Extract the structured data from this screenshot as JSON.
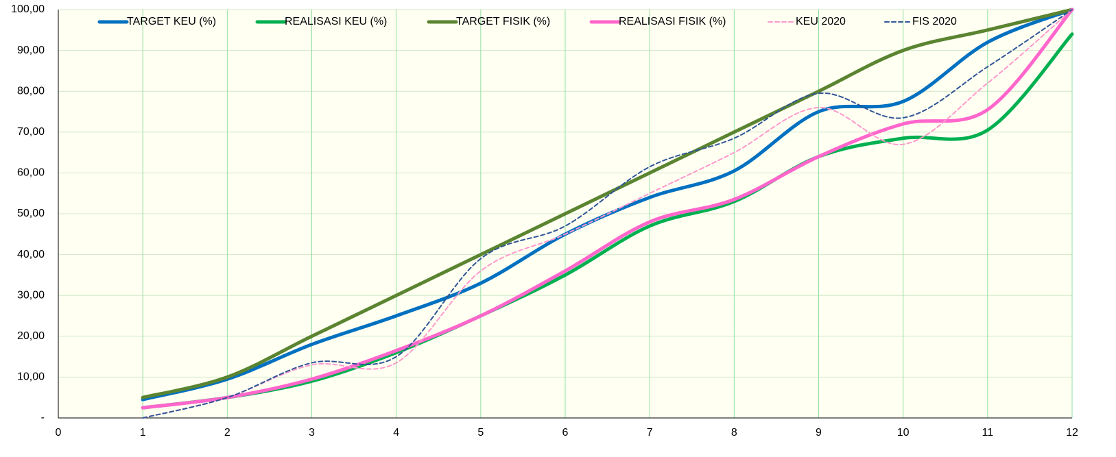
{
  "chart_data": {
    "type": "line",
    "x": [
      1,
      2,
      3,
      4,
      5,
      6,
      7,
      8,
      9,
      10,
      11,
      12
    ],
    "series": [
      {
        "name": "TARGET KEU (%)",
        "color": "#0070c0",
        "values": [
          4.5,
          9.5,
          18,
          25,
          33,
          45,
          54,
          60.5,
          75,
          77.5,
          92,
          100
        ]
      },
      {
        "name": "REALISASI KEU (%)",
        "color": "#00b050",
        "values": [
          2.5,
          5,
          9,
          16,
          25,
          35,
          47,
          53,
          64,
          68.5,
          70.5,
          94
        ]
      },
      {
        "name": "TARGET FISIK (%)",
        "color": "#5b8431",
        "values": [
          5,
          10,
          20,
          30,
          40,
          50,
          60,
          70,
          80,
          90,
          95,
          100
        ]
      },
      {
        "name": "REALISASI FISIK (%)",
        "color": "#ff66cc",
        "values": [
          2.5,
          5,
          9.5,
          16.5,
          25,
          36,
          48,
          53.5,
          64,
          72,
          75.5,
          100
        ]
      },
      {
        "name": "KEU 2020",
        "color": "#ff99cc",
        "values": [
          0,
          5,
          13,
          13.5,
          36,
          45,
          55,
          65,
          76,
          67,
          82,
          100
        ]
      },
      {
        "name": "FIS 2020",
        "color": "#2f5597",
        "values": [
          0,
          5,
          13.5,
          15,
          39,
          47,
          61.5,
          68.5,
          79.5,
          73.5,
          86,
          100
        ]
      }
    ],
    "xlim": [
      0,
      12
    ],
    "xticks": [
      0,
      1,
      2,
      3,
      4,
      5,
      6,
      7,
      8,
      9,
      10,
      11,
      12
    ],
    "ylim": [
      0,
      100
    ],
    "yticks": [
      {
        "value": 0,
        "label": "-"
      },
      {
        "value": 10,
        "label": "10,00"
      },
      {
        "value": 20,
        "label": "20,00"
      },
      {
        "value": 30,
        "label": "30,00"
      },
      {
        "value": 40,
        "label": "40,00"
      },
      {
        "value": 50,
        "label": "50,00"
      },
      {
        "value": 60,
        "label": "60,00"
      },
      {
        "value": 70,
        "label": "70,00"
      },
      {
        "value": 80,
        "label": "80,00"
      },
      {
        "value": 90,
        "label": "90,00"
      },
      {
        "value": 100,
        "label": "100,00"
      }
    ],
    "grid": true,
    "legend": "top"
  }
}
